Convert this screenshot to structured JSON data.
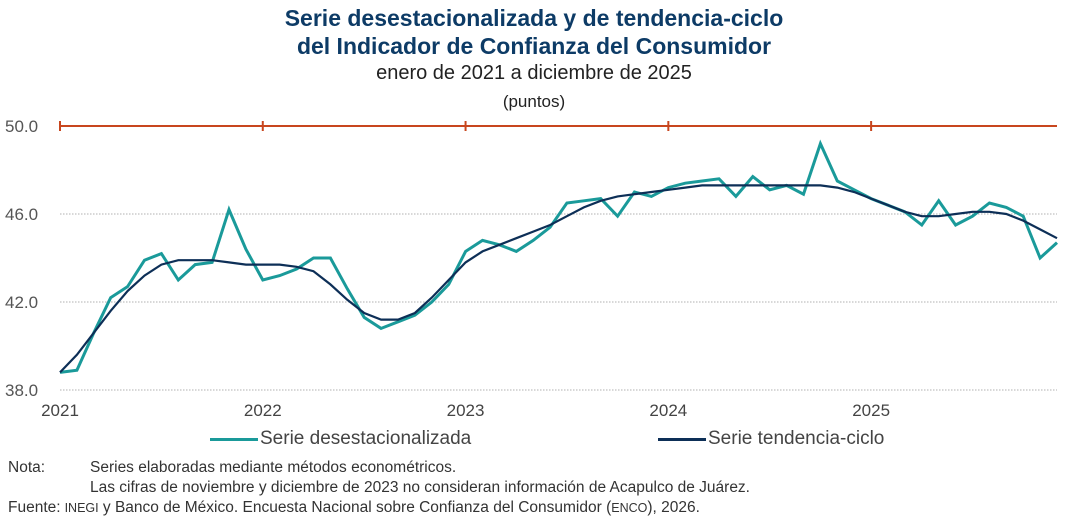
{
  "header": {
    "title_line1": "Serie desestacionalizada y de tendencia-ciclo",
    "title_line2": "del Indicador de Confianza del Consumidor",
    "subtitle": "enero de 2021 a diciembre de 2025",
    "units": "(puntos)"
  },
  "colors": {
    "title": "#0d3b66",
    "seasonal_series": "#1a9a9a",
    "trend_series": "#0d2f57",
    "reference_line": "#c8461e",
    "grid": "#b0b0b0"
  },
  "chart_data": {
    "type": "line",
    "title": "Serie desestacionalizada y de tendencia-ciclo del Indicador de Confianza del Consumidor",
    "subtitle": "enero de 2021 a diciembre de 2025",
    "ylabel": "(puntos)",
    "xlabel": "",
    "ylim": [
      38.0,
      50.0
    ],
    "yticks": [
      "38.0",
      "42.0",
      "46.0",
      "50.0"
    ],
    "ytick_values": [
      38.0,
      42.0,
      46.0,
      50.0
    ],
    "xtick_labels": [
      "2021",
      "2022",
      "2023",
      "2024",
      "2025"
    ],
    "grid": true,
    "legend_position": "bottom",
    "reference_line": {
      "value": 50.0,
      "description": "umbral 50 puntos con marcas anuales"
    },
    "x_start": "2021-01",
    "x_end": "2025-12",
    "frequency": "monthly",
    "series": [
      {
        "name": "Serie desestacionalizada",
        "values": [
          38.8,
          38.9,
          40.6,
          42.2,
          42.7,
          43.9,
          44.2,
          43.0,
          43.7,
          43.8,
          46.2,
          44.4,
          43.0,
          43.2,
          43.5,
          44.0,
          44.0,
          42.6,
          41.3,
          40.8,
          41.1,
          41.4,
          42.0,
          42.8,
          44.3,
          44.8,
          44.6,
          44.3,
          44.8,
          45.4,
          46.5,
          46.6,
          46.7,
          45.9,
          47.0,
          46.8,
          47.2,
          47.4,
          47.5,
          47.6,
          46.8,
          47.7,
          47.1,
          47.3,
          46.9,
          49.2,
          47.5,
          47.1,
          46.7,
          46.4,
          46.1,
          45.5,
          46.6,
          45.5,
          45.9,
          46.5,
          46.3,
          45.9,
          44.0,
          44.7
        ]
      },
      {
        "name": "Serie tendencia-ciclo",
        "values": [
          38.8,
          39.6,
          40.6,
          41.6,
          42.5,
          43.2,
          43.7,
          43.9,
          43.9,
          43.9,
          43.8,
          43.7,
          43.7,
          43.7,
          43.6,
          43.4,
          42.8,
          42.1,
          41.5,
          41.2,
          41.2,
          41.5,
          42.2,
          43.0,
          43.8,
          44.3,
          44.6,
          44.9,
          45.2,
          45.5,
          45.9,
          46.3,
          46.6,
          46.8,
          46.9,
          47.0,
          47.1,
          47.2,
          47.3,
          47.3,
          47.3,
          47.3,
          47.3,
          47.3,
          47.3,
          47.3,
          47.2,
          47.0,
          46.7,
          46.4,
          46.1,
          45.9,
          45.9,
          46.0,
          46.1,
          46.1,
          46.0,
          45.7,
          45.3,
          44.9
        ]
      }
    ]
  },
  "legend": {
    "items": [
      {
        "label": "Serie desestacionalizada"
      },
      {
        "label": "Serie tendencia-ciclo"
      }
    ]
  },
  "notes": {
    "nota_label": "Nota:",
    "nota_line1": "Series elaboradas mediante métodos econométricos.",
    "nota_line2": "Las cifras de noviembre y diciembre de 2023 no consideran información de Acapulco de Juárez.",
    "fuente_label": "Fuente:",
    "fuente_org1": "INEGI",
    "fuente_mid": " y Banco de México. Encuesta Nacional sobre Confianza del Consumidor (",
    "fuente_org2": "ENCO",
    "fuente_end": "), 2026."
  }
}
